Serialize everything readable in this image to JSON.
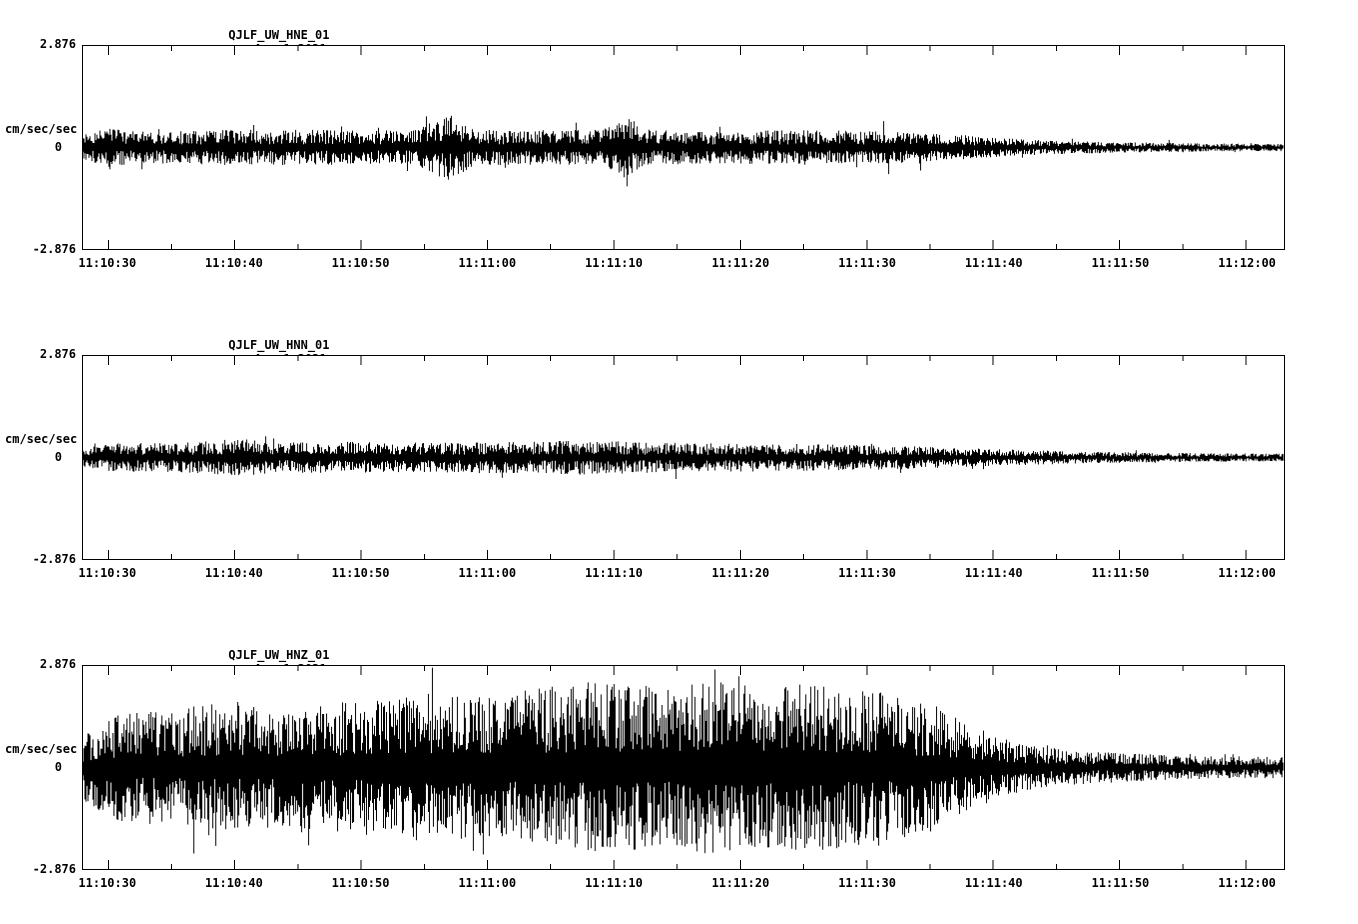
{
  "page": {
    "background": "#ffffff",
    "trace_color": "#000000",
    "text_color": "#000000"
  },
  "chart_data": [
    {
      "type": "line",
      "title": "QJLF_UW_HNE_01  Apr 1,2021",
      "station": "QJLF_UW_HNE_01",
      "date": "Apr 1,2021",
      "y_unit_label": "cm/sec/sec",
      "y_max_label": "2.876",
      "y_zero_label": "0",
      "y_min_label": "-2.876",
      "ylim": [
        -2.876,
        2.876
      ],
      "x_span_seconds": 95,
      "x_tick_labels": [
        "11:10:30",
        "11:10:40",
        "11:10:50",
        "11:11:00",
        "11:11:10",
        "11:11:20",
        "11:11:30",
        "11:11:40",
        "11:11:50",
        "11:12:00"
      ],
      "x_major_tick_seconds": [
        2,
        12,
        22,
        32,
        42,
        52,
        62,
        72,
        82,
        92
      ],
      "x_minor_tick_seconds": [
        7,
        17,
        27,
        37,
        47,
        57,
        67,
        77,
        87
      ],
      "series": [
        {
          "name": "QJLF_UW_HNE_01",
          "kind": "seismic-noise-envelope",
          "envelope_seconds": [
            0,
            2,
            6,
            12,
            20,
            26,
            29,
            31,
            36,
            41,
            43,
            45,
            50,
            56,
            60,
            64,
            68,
            72,
            76,
            82,
            88,
            95
          ],
          "envelope_amplitude": [
            0.35,
            0.55,
            0.45,
            0.5,
            0.5,
            0.48,
            0.95,
            0.5,
            0.5,
            0.5,
            0.9,
            0.5,
            0.45,
            0.5,
            0.48,
            0.45,
            0.38,
            0.28,
            0.2,
            0.15,
            0.12,
            0.1
          ],
          "spike_chance": 0.03,
          "spike_gain": 0.9,
          "seed": 101
        }
      ]
    },
    {
      "type": "line",
      "title": "QJLF_UW_HNN_01  Apr 1,2021",
      "station": "QJLF_UW_HNN_01",
      "date": "Apr 1,2021",
      "y_unit_label": "cm/sec/sec",
      "y_max_label": "2.876",
      "y_zero_label": "0",
      "y_min_label": "-2.876",
      "ylim": [
        -2.876,
        2.876
      ],
      "x_span_seconds": 95,
      "x_tick_labels": [
        "11:10:30",
        "11:10:40",
        "11:10:50",
        "11:11:00",
        "11:11:10",
        "11:11:20",
        "11:11:30",
        "11:11:40",
        "11:11:50",
        "11:12:00"
      ],
      "x_major_tick_seconds": [
        2,
        12,
        22,
        32,
        42,
        52,
        62,
        72,
        82,
        92
      ],
      "x_minor_tick_seconds": [
        7,
        17,
        27,
        37,
        47,
        57,
        67,
        77,
        87
      ],
      "series": [
        {
          "name": "QJLF_UW_HNN_01",
          "kind": "seismic-noise-envelope",
          "envelope_seconds": [
            0,
            2,
            8,
            13,
            15,
            20,
            28,
            34,
            40,
            46,
            52,
            58,
            63,
            67,
            72,
            78,
            84,
            90,
            95
          ],
          "envelope_amplitude": [
            0.25,
            0.4,
            0.42,
            0.55,
            0.42,
            0.45,
            0.42,
            0.45,
            0.48,
            0.42,
            0.4,
            0.38,
            0.36,
            0.3,
            0.24,
            0.18,
            0.14,
            0.12,
            0.11
          ],
          "spike_chance": 0.02,
          "spike_gain": 0.7,
          "seed": 202
        }
      ]
    },
    {
      "type": "line",
      "title": "QJLF_UW_HNZ_01  Apr 1,2021",
      "station": "QJLF_UW_HNZ_01",
      "date": "Apr 1,2021",
      "y_unit_label": "cm/sec/sec",
      "y_max_label": "2.876",
      "y_zero_label": "0",
      "y_min_label": "-2.876",
      "ylim": [
        -2.876,
        2.876
      ],
      "x_span_seconds": 95,
      "x_tick_labels": [
        "11:10:30",
        "11:10:40",
        "11:10:50",
        "11:11:00",
        "11:11:10",
        "11:11:20",
        "11:11:30",
        "11:11:40",
        "11:11:50",
        "11:12:00"
      ],
      "x_major_tick_seconds": [
        2,
        12,
        22,
        32,
        42,
        52,
        62,
        72,
        82,
        92
      ],
      "x_minor_tick_seconds": [
        7,
        17,
        27,
        37,
        47,
        57,
        67,
        77,
        87
      ],
      "series": [
        {
          "name": "QJLF_UW_HNZ_01",
          "kind": "seismic-noise-envelope",
          "envelope_seconds": [
            0,
            2,
            5,
            10,
            16,
            22,
            27,
            32,
            37,
            42,
            46,
            50,
            54,
            58,
            62,
            65,
            68,
            71,
            74,
            78,
            83,
            88,
            95
          ],
          "envelope_amplitude": [
            0.9,
            1.5,
            1.6,
            1.8,
            1.7,
            1.9,
            2.1,
            2.0,
            2.3,
            2.5,
            2.2,
            2.5,
            2.3,
            2.4,
            2.2,
            2.0,
            1.6,
            1.1,
            0.7,
            0.5,
            0.4,
            0.33,
            0.3
          ],
          "spike_chance": 0.035,
          "spike_gain": 0.45,
          "seed": 303
        }
      ]
    }
  ]
}
